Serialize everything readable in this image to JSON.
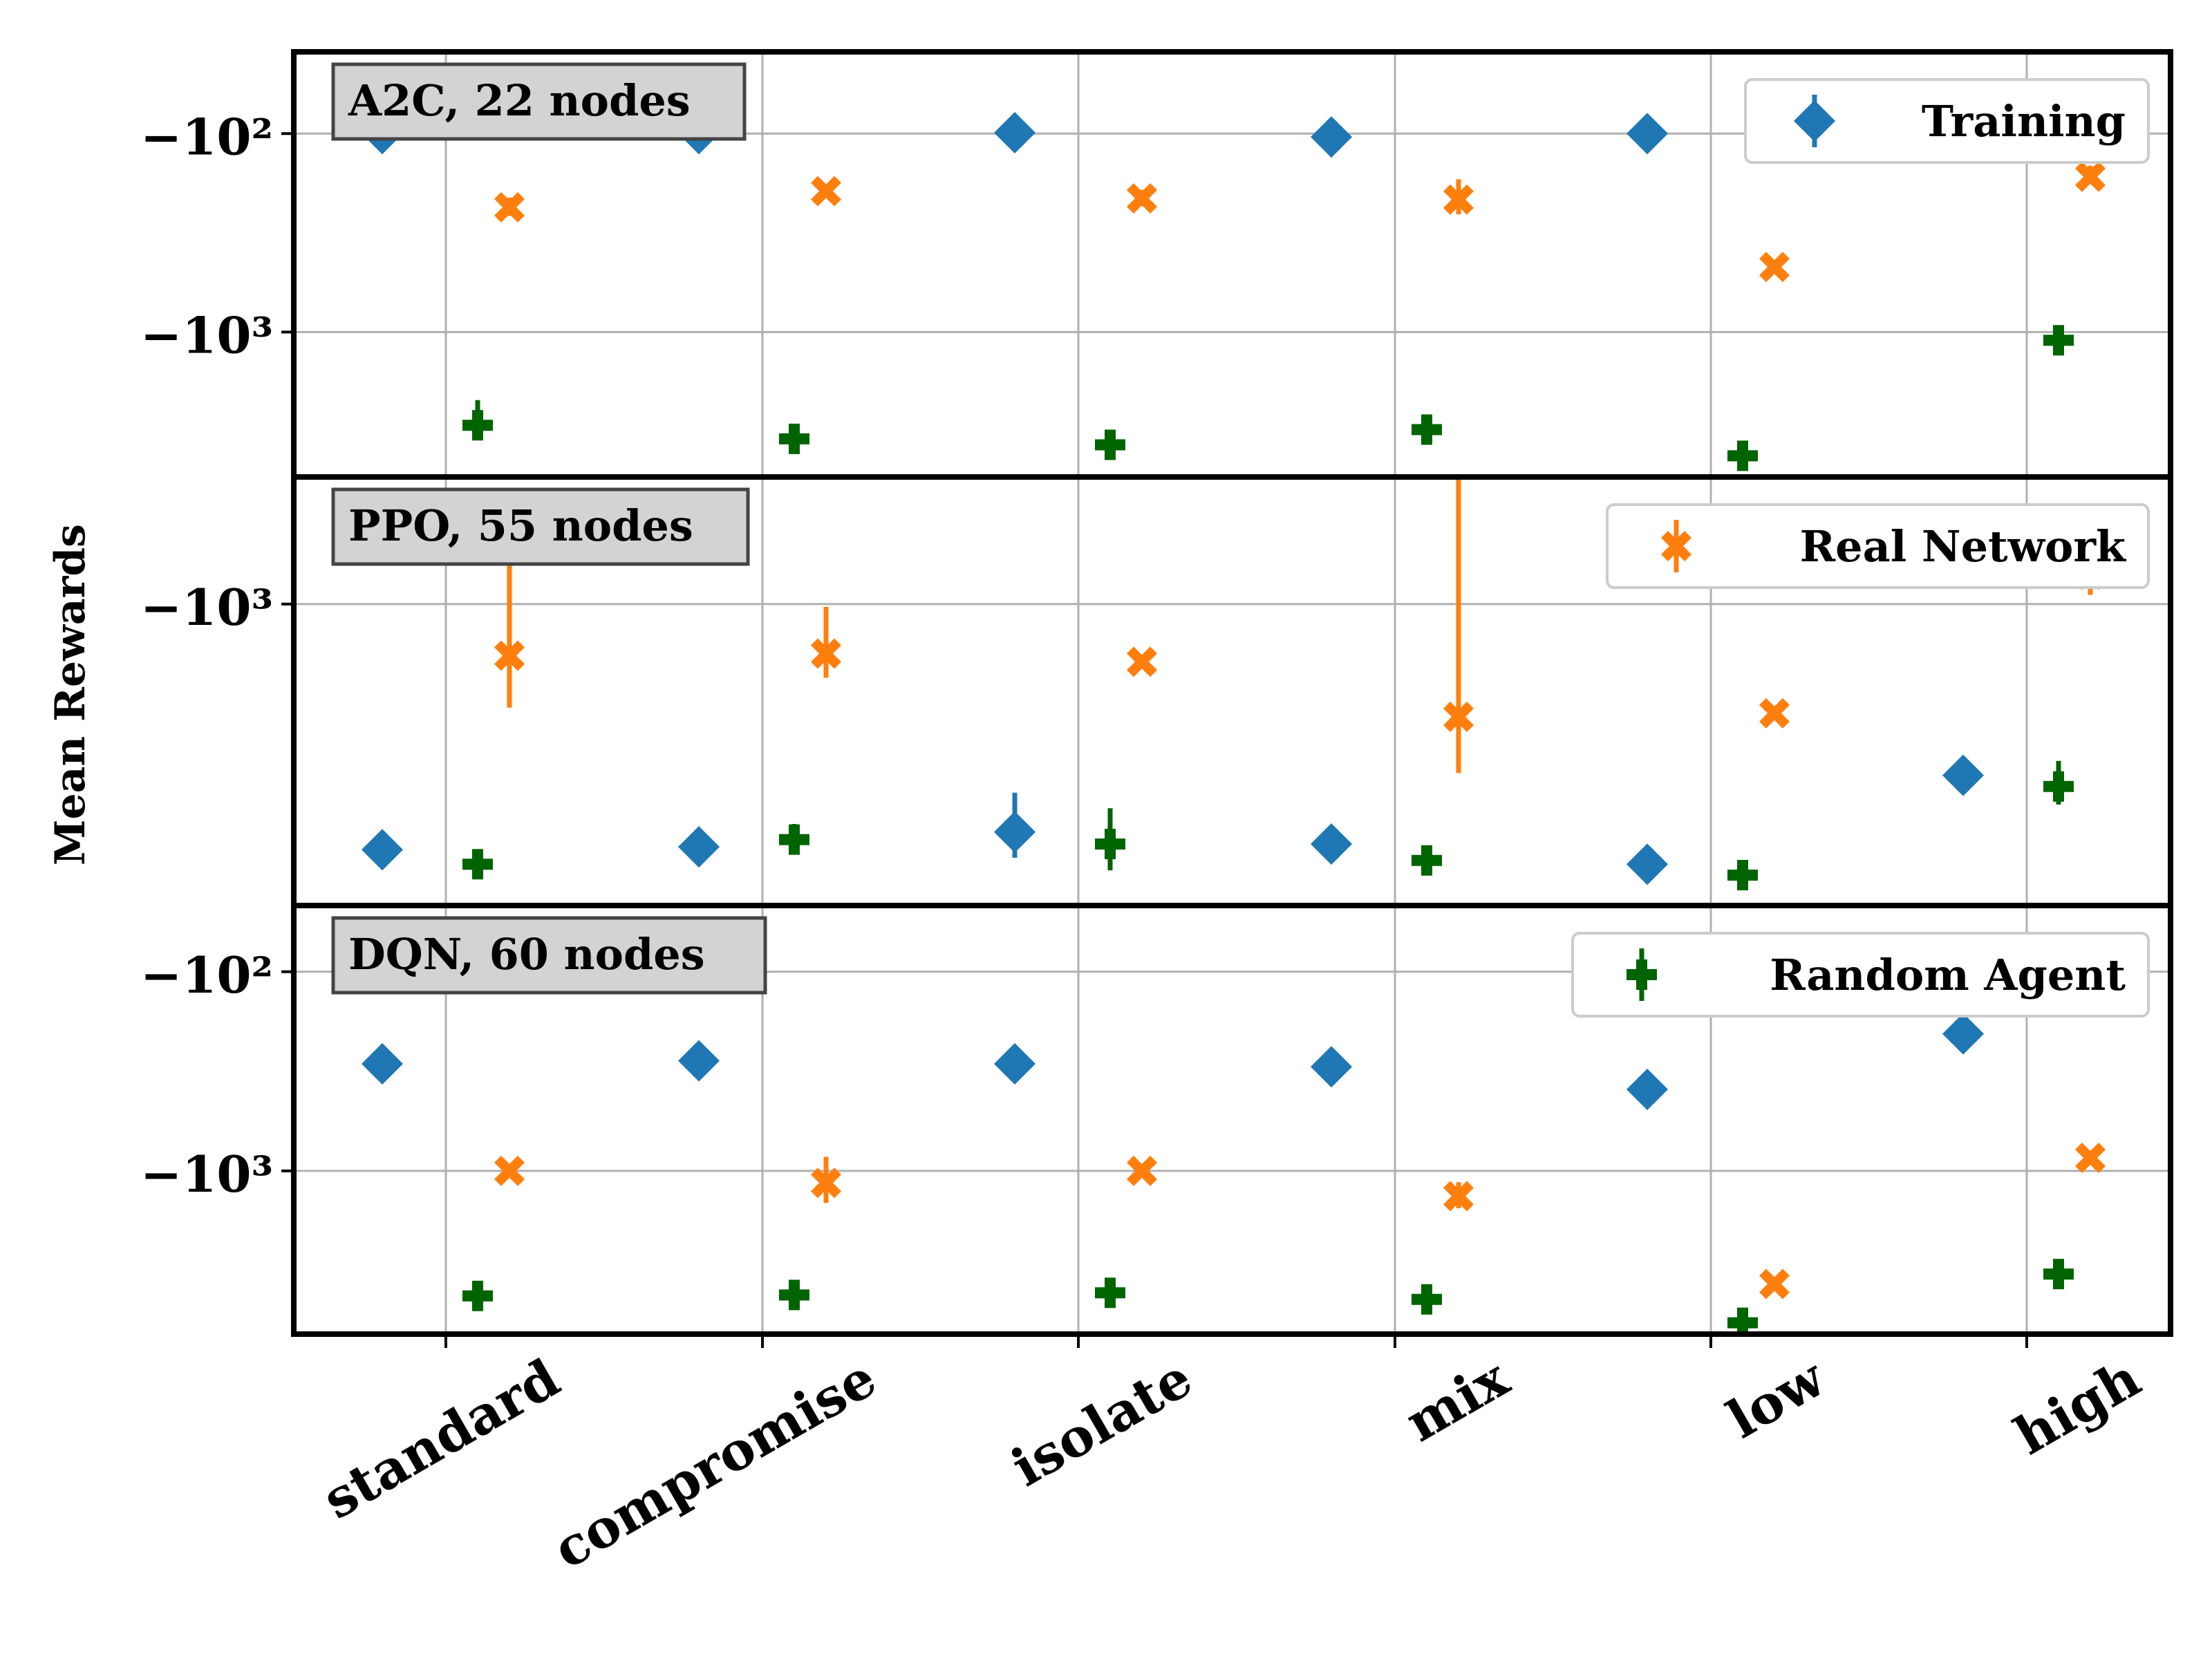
{
  "chart_data": {
    "type": "scatter",
    "ylabel": "Mean Rewards",
    "yscale": "symlog (negative)",
    "grid": true,
    "categories": [
      "standard",
      "compromise",
      "isolate",
      "mix",
      "low",
      "high"
    ],
    "legend_entries": [
      "Training",
      "Real Network",
      "Random Agent"
    ],
    "colors": {
      "Training": "#1f77b4",
      "Real Network": "#ff7f0e",
      "Random Agent": "#006400"
    },
    "markers": {
      "Training": "diamond",
      "Real Network": "x",
      "Random Agent": "plus"
    },
    "panels": [
      {
        "label": "A2C, 22 nodes",
        "legend_series": "Training",
        "legend_position": "top-right",
        "ylim": [
          -5200,
          -40
        ],
        "yticks": [
          -100,
          -1000
        ],
        "ytick_labels": [
          "−10²",
          "−10³"
        ],
        "series": [
          {
            "name": "Training",
            "values": [
              -100,
              -100,
              -99,
              -104,
              -100,
              -100
            ],
            "err": [
              [
                0,
                0
              ],
              [
                0,
                0
              ],
              [
                0,
                0
              ],
              [
                0,
                0
              ],
              [
                0,
                0
              ],
              [
                0,
                0
              ]
            ]
          },
          {
            "name": "Real Network",
            "values": [
              -235,
              -195,
              -212,
              -215,
              -470,
              -165
            ],
            "err": [
              [
                25,
                25
              ],
              [
                15,
                15
              ],
              [
                20,
                20
              ],
              [
                40,
                45
              ],
              [
                20,
                20
              ],
              [
                15,
                20
              ]
            ]
          },
          {
            "name": "Random Agent",
            "values": [
              -2950,
              -3450,
              -3700,
              -3100,
              -4200,
              -1100
            ],
            "err": [
              [
                550,
                750
              ],
              [
                150,
                150
              ],
              [
                150,
                150
              ],
              [
                250,
                300
              ],
              [
                100,
                100
              ],
              [
                100,
                150
              ]
            ]
          }
        ]
      },
      {
        "label": "PPO, 55 nodes",
        "legend_series": "Real Network",
        "legend_position": "top-right",
        "ylim": [
          -7600,
          -430
        ],
        "yticks": [
          -1000
        ],
        "ytick_labels": [
          "−10³"
        ],
        "series": [
          {
            "name": "Training",
            "values": [
              -5300,
              -5200,
              -4700,
              -5100,
              -5850,
              -3200
            ],
            "err": [
              [
                0,
                0
              ],
              [
                0,
                0
              ],
              [
                900,
                1100
              ],
              [
                0,
                0
              ],
              [
                0,
                0
              ],
              [
                0,
                0
              ]
            ]
          },
          {
            "name": "Real Network",
            "values": [
              -1420,
              -1400,
              -1480,
              -2150,
              -2100,
              -820
            ],
            "err": [
              [
                600,
                900
              ],
              [
                250,
                380
              ],
              [
                0,
                0
              ],
              [
                1000,
                1800
              ],
              [
                0,
                0
              ],
              [
                120,
                150
              ]
            ]
          },
          {
            "name": "Random Agent",
            "values": [
              -5850,
              -4950,
              -5100,
              -5700,
              -6300,
              -3450
            ],
            "err": [
              [
                0,
                0
              ],
              [
                500,
                500
              ],
              [
                1000,
                1100
              ],
              [
                0,
                0
              ],
              [
                0,
                0
              ],
              [
                450,
                550
              ]
            ]
          }
        ]
      },
      {
        "label": "DQN, 60 nodes",
        "legend_series": "Random Agent",
        "legend_position": "top-right",
        "ylim": [
          -6400,
          -48
        ],
        "yticks": [
          -100,
          -1000
        ],
        "ytick_labels": [
          "−10²",
          "−10³"
        ],
        "series": [
          {
            "name": "Training",
            "values": [
              -290,
              -280,
              -290,
              -300,
              -390,
              -205
            ],
            "err": [
              [
                0,
                0
              ],
              [
                0,
                30
              ],
              [
                0,
                0
              ],
              [
                0,
                0
              ],
              [
                0,
                0
              ],
              [
                0,
                0
              ]
            ]
          },
          {
            "name": "Real Network",
            "values": [
              -1000,
              -1150,
              -1000,
              -1340,
              -3700,
              -860
            ],
            "err": [
              [
                0,
                0
              ],
              [
                300,
                300
              ],
              [
                0,
                0
              ],
              [
                200,
                200
              ],
              [
                0,
                0
              ],
              [
                0,
                0
              ]
            ]
          },
          {
            "name": "Random Agent",
            "values": [
              -4250,
              -4200,
              -4100,
              -4420,
              -5800,
              -3300
            ],
            "err": [
              [
                0,
                0
              ],
              [
                0,
                0
              ],
              [
                0,
                0
              ],
              [
                0,
                0
              ],
              [
                0,
                0
              ],
              [
                0,
                0
              ]
            ]
          }
        ]
      }
    ]
  }
}
